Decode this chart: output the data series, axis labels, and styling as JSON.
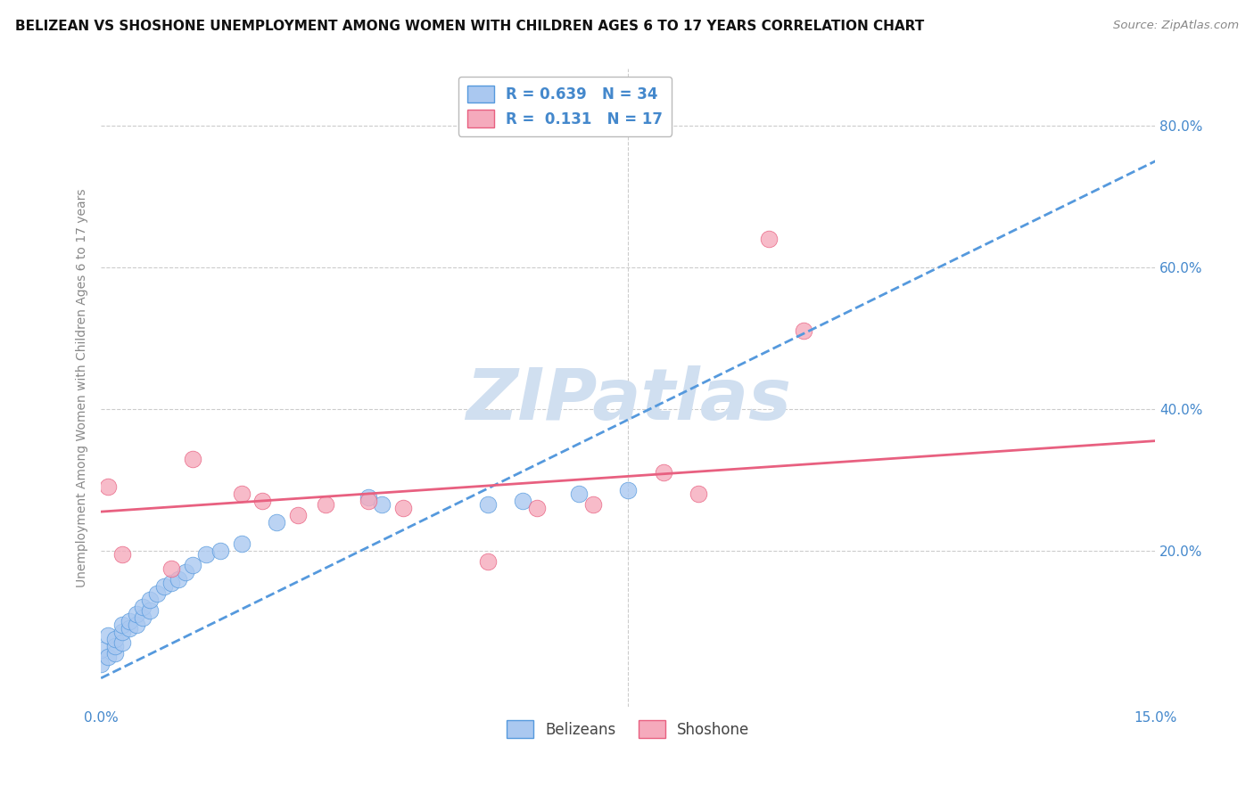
{
  "title": "BELIZEAN VS SHOSHONE UNEMPLOYMENT AMONG WOMEN WITH CHILDREN AGES 6 TO 17 YEARS CORRELATION CHART",
  "source": "Source: ZipAtlas.com",
  "ylabel": "Unemployment Among Women with Children Ages 6 to 17 years",
  "xlim": [
    0.0,
    0.15
  ],
  "ylim": [
    -0.02,
    0.88
  ],
  "y_ticks": [
    0.2,
    0.4,
    0.6,
    0.8
  ],
  "y_tick_labels": [
    "20.0%",
    "40.0%",
    "60.0%",
    "80.0%"
  ],
  "x_ticks": [
    0.0,
    0.15
  ],
  "x_tick_labels": [
    "0.0%",
    "15.0%"
  ],
  "belizean_color": "#aac8f0",
  "shoshone_color": "#f5aabc",
  "belizean_line_color": "#5599dd",
  "shoshone_line_color": "#e86080",
  "watermark": "ZIPatlas",
  "watermark_color": "#d0dff0",
  "background_color": "#ffffff",
  "grid_color": "#cccccc",
  "tick_color": "#4488cc",
  "title_fontsize": 11,
  "label_fontsize": 10,
  "tick_fontsize": 11,
  "legend_fontsize": 12,
  "belizean_points_x": [
    0.0,
    0.0,
    0.001,
    0.001,
    0.002,
    0.002,
    0.002,
    0.003,
    0.003,
    0.003,
    0.004,
    0.004,
    0.005,
    0.005,
    0.006,
    0.006,
    0.007,
    0.007,
    0.008,
    0.009,
    0.01,
    0.011,
    0.012,
    0.013,
    0.015,
    0.017,
    0.02,
    0.025,
    0.038,
    0.04,
    0.055,
    0.06,
    0.068,
    0.075
  ],
  "belizean_points_y": [
    0.04,
    0.06,
    0.05,
    0.08,
    0.055,
    0.065,
    0.075,
    0.07,
    0.085,
    0.095,
    0.09,
    0.1,
    0.095,
    0.11,
    0.105,
    0.12,
    0.115,
    0.13,
    0.14,
    0.15,
    0.155,
    0.16,
    0.17,
    0.18,
    0.195,
    0.2,
    0.21,
    0.24,
    0.275,
    0.265,
    0.265,
    0.27,
    0.28,
    0.285
  ],
  "shoshone_points_x": [
    0.001,
    0.003,
    0.01,
    0.013,
    0.02,
    0.023,
    0.028,
    0.032,
    0.038,
    0.043,
    0.055,
    0.062,
    0.07,
    0.08,
    0.085,
    0.095,
    0.1
  ],
  "shoshone_points_y": [
    0.29,
    0.195,
    0.175,
    0.33,
    0.28,
    0.27,
    0.25,
    0.265,
    0.27,
    0.26,
    0.185,
    0.26,
    0.265,
    0.31,
    0.28,
    0.64,
    0.51
  ],
  "bel_line_x0": 0.0,
  "bel_line_y0": 0.02,
  "bel_line_x1": 0.15,
  "bel_line_y1": 0.75,
  "sho_line_x0": 0.0,
  "sho_line_y0": 0.255,
  "sho_line_x1": 0.15,
  "sho_line_y1": 0.355
}
